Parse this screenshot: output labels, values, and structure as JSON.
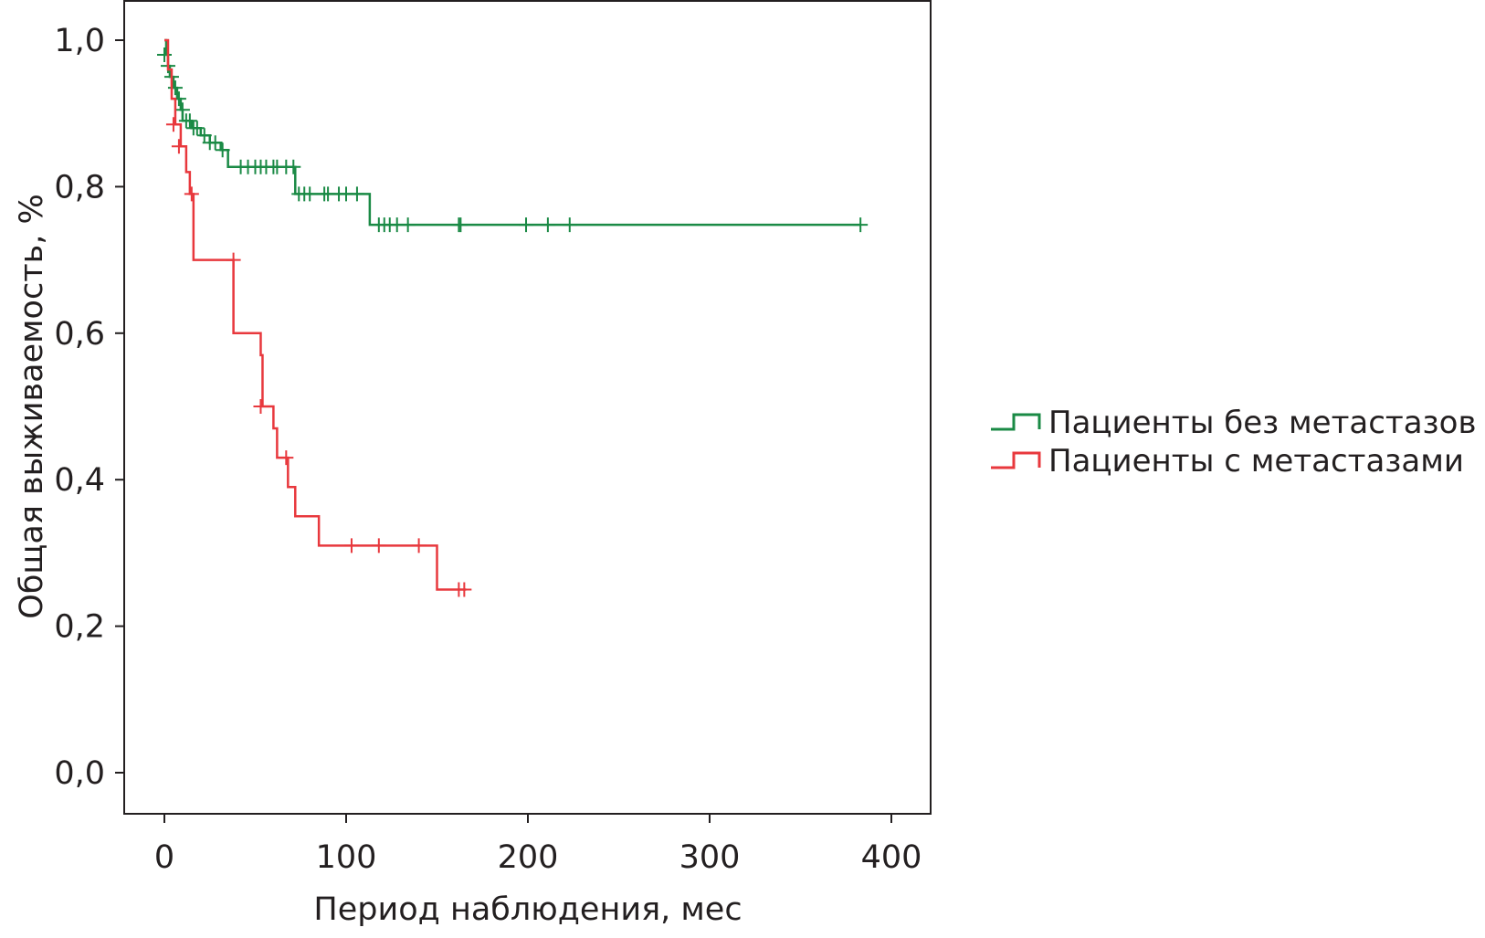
{
  "chart_data": {
    "type": "line",
    "subtype": "kaplan-meier",
    "xlabel": "Период наблюдения, мес",
    "ylabel": "Общая выживаемость, %",
    "xlim": [
      -22,
      420
    ],
    "ylim": [
      -0.055,
      1.055
    ],
    "x_ticks": [
      0,
      100,
      200,
      300,
      400
    ],
    "x_tick_labels": [
      "0",
      "100",
      "200",
      "300",
      "400"
    ],
    "y_ticks": [
      0,
      0.2,
      0.4,
      0.6,
      0.8,
      1.0
    ],
    "y_tick_labels": [
      "0,0",
      "0,2",
      "0,4",
      "0,6",
      "0,8",
      "1,0"
    ],
    "grid": false,
    "legend_placement": "right",
    "series": [
      {
        "name": "Пациенты без метастазов",
        "color": "#1a8a45",
        "steps": [
          [
            0,
            1.0
          ],
          [
            1,
            0.98
          ],
          [
            2,
            0.965
          ],
          [
            3,
            0.95
          ],
          [
            5,
            0.935
          ],
          [
            7,
            0.92
          ],
          [
            9,
            0.905
          ],
          [
            10,
            0.89
          ],
          [
            15,
            0.88
          ],
          [
            20,
            0.87
          ],
          [
            25,
            0.86
          ],
          [
            31,
            0.85
          ],
          [
            35,
            0.827
          ],
          [
            72,
            0.79
          ],
          [
            113,
            0.748
          ]
        ],
        "end": 383,
        "censored": [
          [
            0,
            0.98
          ],
          [
            2,
            0.965
          ],
          [
            4,
            0.95
          ],
          [
            6,
            0.935
          ],
          [
            8,
            0.92
          ],
          [
            10,
            0.905
          ],
          [
            12,
            0.89
          ],
          [
            14,
            0.89
          ],
          [
            16,
            0.88
          ],
          [
            18,
            0.88
          ],
          [
            22,
            0.87
          ],
          [
            25,
            0.86
          ],
          [
            28,
            0.86
          ],
          [
            32,
            0.85
          ],
          [
            42,
            0.827
          ],
          [
            46,
            0.827
          ],
          [
            50,
            0.827
          ],
          [
            53,
            0.827
          ],
          [
            56,
            0.827
          ],
          [
            60,
            0.827
          ],
          [
            62,
            0.827
          ],
          [
            67,
            0.827
          ],
          [
            71,
            0.827
          ],
          [
            74,
            0.79
          ],
          [
            77,
            0.79
          ],
          [
            80,
            0.79
          ],
          [
            88,
            0.79
          ],
          [
            90,
            0.79
          ],
          [
            96,
            0.79
          ],
          [
            100,
            0.79
          ],
          [
            106,
            0.79
          ],
          [
            118,
            0.748
          ],
          [
            121,
            0.748
          ],
          [
            124,
            0.748
          ],
          [
            128,
            0.748
          ],
          [
            134,
            0.748
          ],
          [
            162,
            0.748
          ],
          [
            163,
            0.748
          ],
          [
            199,
            0.748
          ],
          [
            211,
            0.748
          ],
          [
            223,
            0.748
          ],
          [
            383,
            0.748
          ]
        ]
      },
      {
        "name": "Пациенты с метастазами",
        "color": "#e8383d",
        "steps": [
          [
            0,
            1.0
          ],
          [
            2,
            0.96
          ],
          [
            4,
            0.92
          ],
          [
            6,
            0.885
          ],
          [
            9,
            0.855
          ],
          [
            12,
            0.82
          ],
          [
            14,
            0.79
          ],
          [
            16,
            0.7
          ],
          [
            38,
            0.6
          ],
          [
            53,
            0.57
          ],
          [
            54,
            0.5
          ],
          [
            60,
            0.47
          ],
          [
            62,
            0.43
          ],
          [
            68,
            0.39
          ],
          [
            72,
            0.35
          ],
          [
            85,
            0.31
          ],
          [
            150,
            0.25
          ]
        ],
        "end": 166,
        "censored": [
          [
            5,
            0.885
          ],
          [
            8,
            0.855
          ],
          [
            15,
            0.79
          ],
          [
            38,
            0.7
          ],
          [
            53,
            0.5
          ],
          [
            67,
            0.43
          ],
          [
            103,
            0.31
          ],
          [
            118,
            0.31
          ],
          [
            140,
            0.31
          ],
          [
            162,
            0.25
          ],
          [
            165,
            0.25
          ]
        ]
      }
    ]
  }
}
